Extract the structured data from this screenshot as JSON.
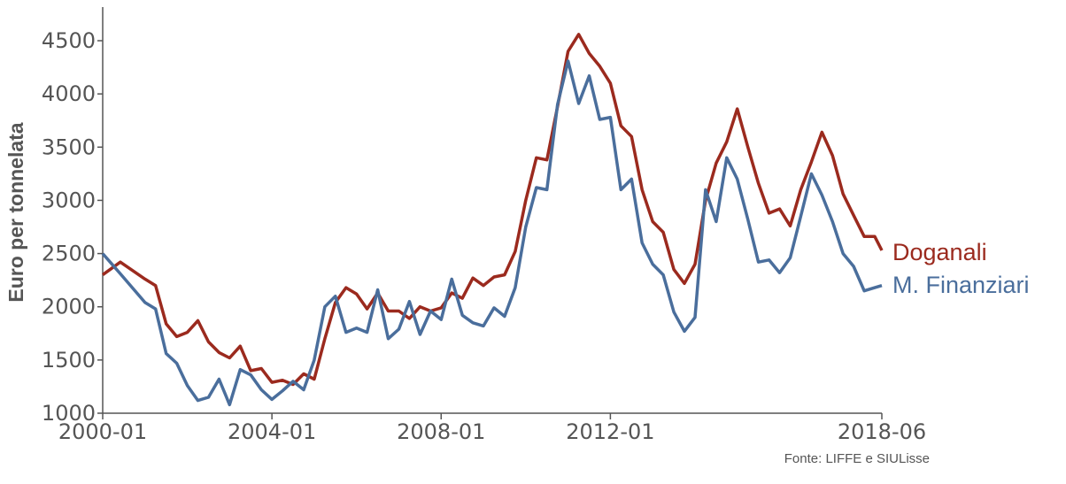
{
  "chart_data": {
    "type": "line",
    "ylabel": "Euro per tonnelata",
    "xlim": [
      "2000-01",
      "2018-06"
    ],
    "ylim": [
      1000,
      4500
    ],
    "x_ticks": [
      "2000-01",
      "2004-01",
      "2008-01",
      "2012-01",
      "2018-06"
    ],
    "y_ticks": [
      1000,
      1500,
      2000,
      2500,
      3000,
      3500,
      4000,
      4500
    ],
    "grid": false,
    "legend": "inline-right",
    "source": "Fonte: LIFFE e SIULisse",
    "series": [
      {
        "name": "Doganali",
        "color": "#9b2a1e",
        "points": [
          [
            "2000-01",
            2300
          ],
          [
            "2000-06",
            2420
          ],
          [
            "2001-01",
            2260
          ],
          [
            "2001-04",
            2200
          ],
          [
            "2001-07",
            1840
          ],
          [
            "2001-10",
            1720
          ],
          [
            "2002-01",
            1760
          ],
          [
            "2002-04",
            1870
          ],
          [
            "2002-07",
            1670
          ],
          [
            "2002-10",
            1570
          ],
          [
            "2003-01",
            1520
          ],
          [
            "2003-04",
            1630
          ],
          [
            "2003-07",
            1400
          ],
          [
            "2003-10",
            1420
          ],
          [
            "2004-01",
            1290
          ],
          [
            "2004-04",
            1310
          ],
          [
            "2004-07",
            1270
          ],
          [
            "2004-10",
            1370
          ],
          [
            "2005-01",
            1320
          ],
          [
            "2005-04",
            1700
          ],
          [
            "2005-07",
            2040
          ],
          [
            "2005-10",
            2180
          ],
          [
            "2006-01",
            2120
          ],
          [
            "2006-04",
            1980
          ],
          [
            "2006-07",
            2130
          ],
          [
            "2006-10",
            1960
          ],
          [
            "2007-01",
            1960
          ],
          [
            "2007-04",
            1890
          ],
          [
            "2007-07",
            2000
          ],
          [
            "2007-10",
            1960
          ],
          [
            "2008-01",
            1990
          ],
          [
            "2008-04",
            2130
          ],
          [
            "2008-07",
            2080
          ],
          [
            "2008-10",
            2270
          ],
          [
            "2009-01",
            2200
          ],
          [
            "2009-04",
            2280
          ],
          [
            "2009-07",
            2300
          ],
          [
            "2009-10",
            2520
          ],
          [
            "2010-01",
            3000
          ],
          [
            "2010-04",
            3400
          ],
          [
            "2010-07",
            3380
          ],
          [
            "2010-10",
            3880
          ],
          [
            "2011-01",
            4400
          ],
          [
            "2011-04",
            4560
          ],
          [
            "2011-07",
            4380
          ],
          [
            "2011-10",
            4260
          ],
          [
            "2012-01",
            4100
          ],
          [
            "2012-04",
            3700
          ],
          [
            "2012-07",
            3600
          ],
          [
            "2012-10",
            3100
          ],
          [
            "2013-01",
            2800
          ],
          [
            "2013-04",
            2700
          ],
          [
            "2013-07",
            2350
          ],
          [
            "2013-10",
            2220
          ],
          [
            "2014-01",
            2400
          ],
          [
            "2014-04",
            3000
          ],
          [
            "2014-07",
            3350
          ],
          [
            "2014-10",
            3550
          ],
          [
            "2015-01",
            3860
          ],
          [
            "2015-04",
            3500
          ],
          [
            "2015-07",
            3160
          ],
          [
            "2015-10",
            2880
          ],
          [
            "2016-01",
            2920
          ],
          [
            "2016-04",
            2760
          ],
          [
            "2016-07",
            3100
          ],
          [
            "2016-10",
            3360
          ],
          [
            "2017-01",
            3640
          ],
          [
            "2017-04",
            3420
          ],
          [
            "2017-07",
            3060
          ],
          [
            "2017-10",
            2860
          ],
          [
            "2018-01",
            2660
          ],
          [
            "2018-04",
            2660
          ],
          [
            "2018-06",
            2530
          ]
        ]
      },
      {
        "name": "M. Finanziari",
        "color": "#4a6e9c",
        "points": [
          [
            "2000-01",
            2500
          ],
          [
            "2000-06",
            2310
          ],
          [
            "2001-01",
            2040
          ],
          [
            "2001-04",
            1980
          ],
          [
            "2001-07",
            1560
          ],
          [
            "2001-10",
            1470
          ],
          [
            "2002-01",
            1260
          ],
          [
            "2002-04",
            1120
          ],
          [
            "2002-07",
            1150
          ],
          [
            "2002-10",
            1320
          ],
          [
            "2003-01",
            1080
          ],
          [
            "2003-04",
            1410
          ],
          [
            "2003-07",
            1360
          ],
          [
            "2003-10",
            1220
          ],
          [
            "2004-01",
            1130
          ],
          [
            "2004-04",
            1210
          ],
          [
            "2004-07",
            1300
          ],
          [
            "2004-10",
            1220
          ],
          [
            "2005-01",
            1500
          ],
          [
            "2005-04",
            2000
          ],
          [
            "2005-07",
            2100
          ],
          [
            "2005-10",
            1760
          ],
          [
            "2006-01",
            1800
          ],
          [
            "2006-04",
            1760
          ],
          [
            "2006-07",
            2160
          ],
          [
            "2006-10",
            1700
          ],
          [
            "2007-01",
            1790
          ],
          [
            "2007-04",
            2050
          ],
          [
            "2007-07",
            1740
          ],
          [
            "2007-10",
            1960
          ],
          [
            "2008-01",
            1880
          ],
          [
            "2008-04",
            2260
          ],
          [
            "2008-07",
            1920
          ],
          [
            "2008-10",
            1850
          ],
          [
            "2009-01",
            1820
          ],
          [
            "2009-04",
            1990
          ],
          [
            "2009-07",
            1910
          ],
          [
            "2009-10",
            2180
          ],
          [
            "2010-01",
            2750
          ],
          [
            "2010-04",
            3120
          ],
          [
            "2010-07",
            3100
          ],
          [
            "2010-10",
            3900
          ],
          [
            "2011-01",
            4310
          ],
          [
            "2011-04",
            3910
          ],
          [
            "2011-07",
            4170
          ],
          [
            "2011-10",
            3760
          ],
          [
            "2012-01",
            3780
          ],
          [
            "2012-04",
            3100
          ],
          [
            "2012-07",
            3200
          ],
          [
            "2012-10",
            2600
          ],
          [
            "2013-01",
            2400
          ],
          [
            "2013-04",
            2300
          ],
          [
            "2013-07",
            1950
          ],
          [
            "2013-10",
            1770
          ],
          [
            "2014-01",
            1900
          ],
          [
            "2014-04",
            3100
          ],
          [
            "2014-07",
            2800
          ],
          [
            "2014-10",
            3400
          ],
          [
            "2015-01",
            3200
          ],
          [
            "2015-04",
            2820
          ],
          [
            "2015-07",
            2420
          ],
          [
            "2015-10",
            2440
          ],
          [
            "2016-01",
            2320
          ],
          [
            "2016-04",
            2460
          ],
          [
            "2016-07",
            2850
          ],
          [
            "2016-10",
            3250
          ],
          [
            "2017-01",
            3050
          ],
          [
            "2017-04",
            2800
          ],
          [
            "2017-07",
            2500
          ],
          [
            "2017-10",
            2380
          ],
          [
            "2018-01",
            2150
          ],
          [
            "2018-04",
            2180
          ],
          [
            "2018-06",
            2200
          ]
        ]
      }
    ]
  }
}
